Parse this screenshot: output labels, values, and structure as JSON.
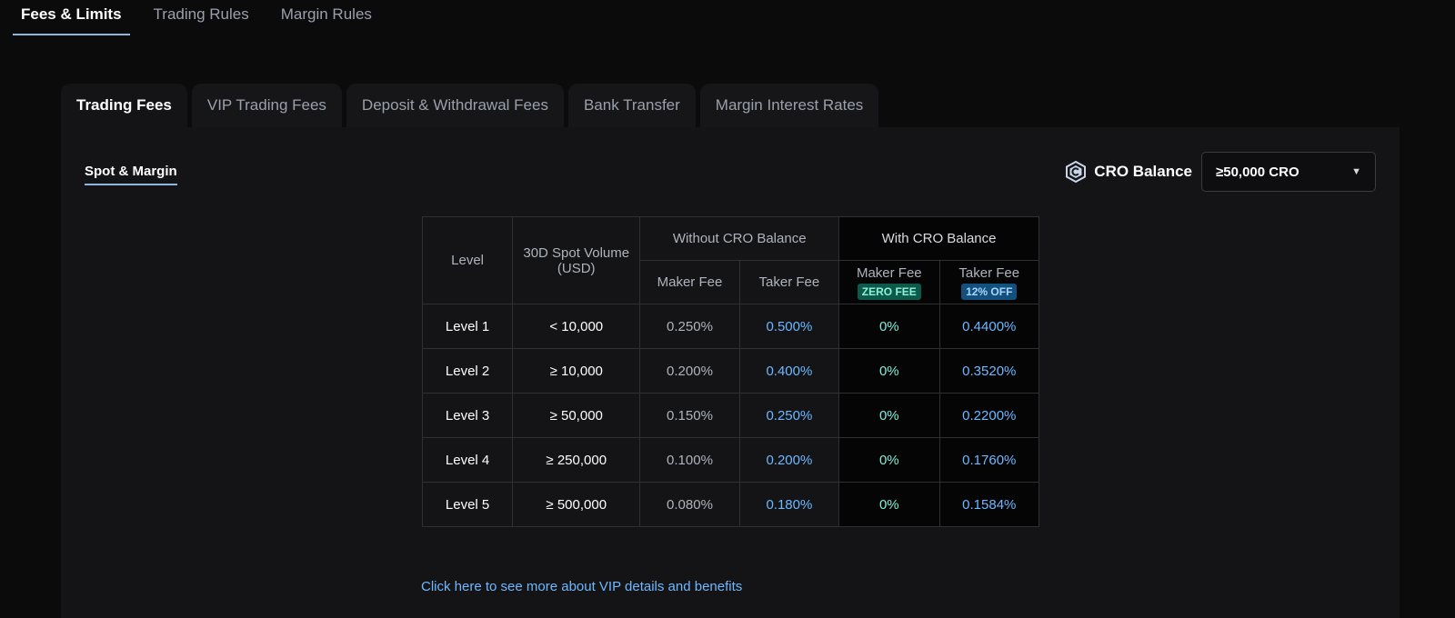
{
  "top_tabs": [
    {
      "label": "Fees & Limits"
    },
    {
      "label": "Trading Rules"
    },
    {
      "label": "Margin Rules"
    }
  ],
  "sub_tabs": [
    {
      "label": "Trading Fees"
    },
    {
      "label": "VIP Trading Fees"
    },
    {
      "label": "Deposit & Withdrawal Fees"
    },
    {
      "label": "Bank Transfer"
    },
    {
      "label": "Margin Interest Rates"
    }
  ],
  "spot_tab": "Spot & Margin",
  "cro": {
    "label": "CRO Balance",
    "selected": "≥50,000 CRO",
    "icon": "cro-coin-icon"
  },
  "table": {
    "headers": {
      "level": "Level",
      "volume": "30D Spot Volume (USD)",
      "without": "Without CRO Balance",
      "with": "With CRO Balance",
      "maker": "Maker Fee",
      "taker": "Taker Fee",
      "with_maker": "Maker Fee",
      "with_taker": "Taker Fee",
      "badge_zero": "ZERO FEE",
      "badge_off": "12% OFF"
    },
    "rows": [
      {
        "level": "Level 1",
        "volume": "< 10,000",
        "maker": "0.250%",
        "taker": "0.500%",
        "cro_maker": "0%",
        "cro_taker": "0.4400%"
      },
      {
        "level": "Level 2",
        "volume": "≥ 10,000",
        "maker": "0.200%",
        "taker": "0.400%",
        "cro_maker": "0%",
        "cro_taker": "0.3520%"
      },
      {
        "level": "Level 3",
        "volume": "≥ 50,000",
        "maker": "0.150%",
        "taker": "0.250%",
        "cro_maker": "0%",
        "cro_taker": "0.2200%"
      },
      {
        "level": "Level 4",
        "volume": "≥ 250,000",
        "maker": "0.100%",
        "taker": "0.200%",
        "cro_maker": "0%",
        "cro_taker": "0.1760%"
      },
      {
        "level": "Level 5",
        "volume": "≥ 500,000",
        "maker": "0.080%",
        "taker": "0.180%",
        "cro_maker": "0%",
        "cro_taker": "0.1584%"
      }
    ]
  },
  "vip_link": "Click here to see more about VIP details and benefits",
  "colors": {
    "accent": "#6fb7ff",
    "zero": "#7ff0dc",
    "background": "#0b0b0c"
  }
}
